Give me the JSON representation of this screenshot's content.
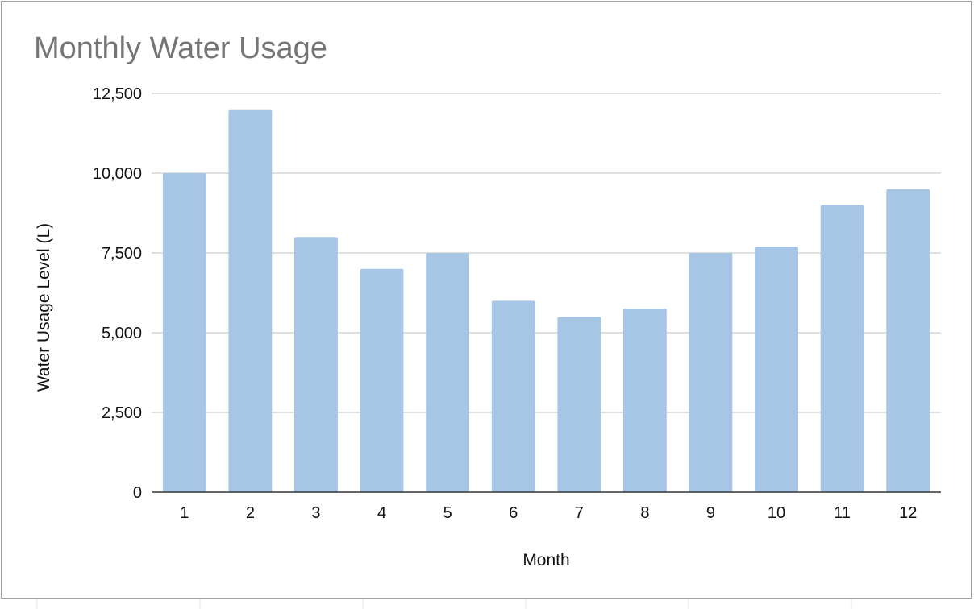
{
  "chart_data": {
    "type": "bar",
    "title": "Monthly Water Usage",
    "xlabel": "Month",
    "ylabel": "Water Usage Level (L)",
    "categories": [
      "1",
      "2",
      "3",
      "4",
      "5",
      "6",
      "7",
      "8",
      "9",
      "10",
      "11",
      "12"
    ],
    "values": [
      10000,
      12000,
      8000,
      7000,
      7500,
      6000,
      5500,
      5750,
      7500,
      7700,
      9000,
      9500
    ],
    "ylim": [
      0,
      12500
    ],
    "yticks": [
      0,
      2500,
      5000,
      7500,
      10000,
      12500
    ],
    "ytick_labels": [
      "0",
      "2,500",
      "5,000",
      "7,500",
      "10,000",
      "12,500"
    ],
    "grid": true,
    "legend": "none",
    "colors": {
      "bar": "#a7c6e6",
      "grid": "#cccccc",
      "axis": "#333333",
      "title": "#757575"
    }
  }
}
